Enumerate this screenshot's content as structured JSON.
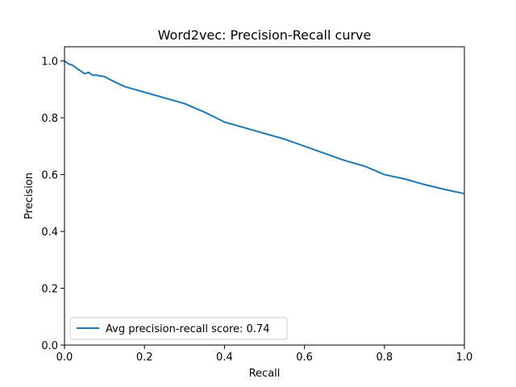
{
  "chart_data": {
    "type": "line",
    "title": "Word2vec: Precision-Recall curve",
    "xlabel": "Recall",
    "ylabel": "Precision",
    "xlim": [
      0.0,
      1.0
    ],
    "ylim": [
      0.0,
      1.05
    ],
    "xticks": [
      "0.0",
      "0.2",
      "0.4",
      "0.6",
      "0.8",
      "1.0"
    ],
    "yticks": [
      "0.0",
      "0.2",
      "0.4",
      "0.6",
      "0.8",
      "1.0"
    ],
    "grid": false,
    "legend_position": "lower-left",
    "series": [
      {
        "name": "Avg precision-recall score: 0.74",
        "color": "#1f77b4",
        "x": [
          0.0,
          0.005,
          0.01,
          0.02,
          0.03,
          0.04,
          0.05,
          0.06,
          0.07,
          0.08,
          0.1,
          0.12,
          0.15,
          0.2,
          0.25,
          0.3,
          0.35,
          0.4,
          0.45,
          0.5,
          0.55,
          0.6,
          0.65,
          0.7,
          0.75,
          0.8,
          0.85,
          0.9,
          0.95,
          1.0
        ],
        "y": [
          1.0,
          0.995,
          0.99,
          0.985,
          0.975,
          0.965,
          0.955,
          0.96,
          0.95,
          0.95,
          0.945,
          0.93,
          0.91,
          0.89,
          0.87,
          0.85,
          0.82,
          0.785,
          0.765,
          0.745,
          0.725,
          0.7,
          0.675,
          0.65,
          0.63,
          0.6,
          0.585,
          0.565,
          0.548,
          0.533
        ]
      }
    ]
  }
}
